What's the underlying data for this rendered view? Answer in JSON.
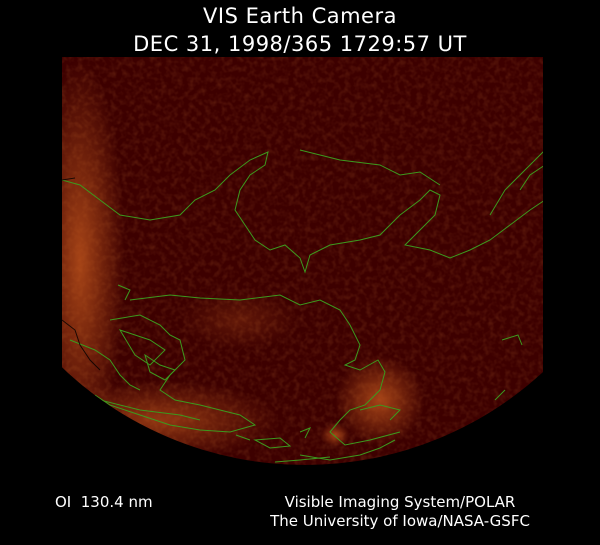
{
  "header": {
    "title": "VIS Earth Camera",
    "timestamp": "DEC 31, 1998/365 1729:57 UT"
  },
  "footer": {
    "band": "OI  130.4 nm",
    "credit_line1": "Visible Imaging System/POLAR",
    "credit_line2": "The University of Iowa/NASA-GSFC"
  },
  "colors": {
    "background": "#000000",
    "disk": "#3d0000",
    "aurora_glow": "#c0501a",
    "coastline": "#3c9a1e"
  }
}
